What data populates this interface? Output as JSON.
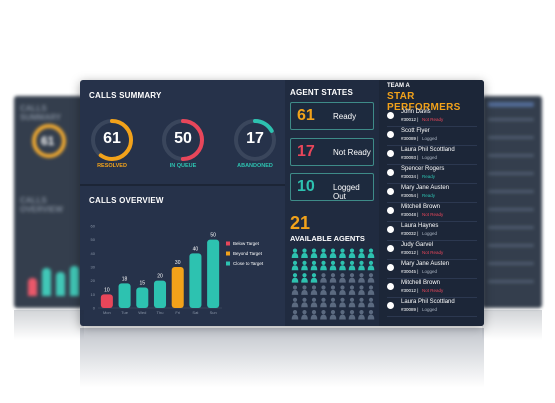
{
  "summary": {
    "title": "CALLS SUMMARY",
    "kpis": [
      {
        "value": "61",
        "label": "RESOLVED",
        "color": "#f2a21a",
        "fill": 0.6
      },
      {
        "value": "50",
        "label": "IN QUEUE",
        "color": "#e8465a",
        "fill": 0.5
      },
      {
        "value": "17",
        "label": "ABANDONED",
        "color": "#2dc2b0",
        "fill": 0.17
      }
    ]
  },
  "overview": {
    "title": "CALLS OVERVIEW"
  },
  "chart_data": {
    "type": "bar",
    "categories": [
      "Mon",
      "Tue",
      "Wed",
      "Thu",
      "Fri",
      "Sat",
      "Sun"
    ],
    "values": [
      10,
      18,
      15,
      20,
      30,
      40,
      50
    ],
    "bar_colors": [
      "#e8465a",
      "#2dc2b0",
      "#2dc2b0",
      "#2dc2b0",
      "#f2a21a",
      "#2dc2b0",
      "#2dc2b0"
    ],
    "ylim": [
      0,
      60
    ],
    "yticks": [
      "0",
      "10",
      "20",
      "30",
      "40",
      "50",
      "60"
    ],
    "legend": [
      {
        "name": "Below Target",
        "color": "#e8465a"
      },
      {
        "name": "Beyond Target",
        "color": "#f2a21a"
      },
      {
        "name": "Close to Target",
        "color": "#2dc2b0"
      }
    ],
    "legend_position": "right",
    "grid": false
  },
  "agent_states": {
    "title": "AGENT STATES",
    "states": [
      {
        "value": "61",
        "label": "Ready",
        "color": "#f2a21a"
      },
      {
        "value": "17",
        "label": "Not Ready",
        "color": "#e8465a"
      },
      {
        "value": "10",
        "label": "Logged Out",
        "color": "#2dc2b0"
      }
    ]
  },
  "available": {
    "value": "21",
    "label": "AVAILABLE AGENTS",
    "total_icons": 54,
    "available_count": 21,
    "available_color": "#2dc2b0",
    "other_color": "#5b6a80"
  },
  "team": {
    "label": "TEAM A",
    "title": "STAR PERFORMERS",
    "members": [
      {
        "name": "John Davis",
        "id": "#30012",
        "status": "Not Ready",
        "status_color": "#e8465a"
      },
      {
        "name": "Scott Flyer",
        "id": "#30089",
        "status": "Logged",
        "status_color": "#aab4c2"
      },
      {
        "name": "Laura Phil Scottland",
        "id": "#30093",
        "status": "Logged",
        "status_color": "#aab4c2"
      },
      {
        "name": "Spencer Rogers",
        "id": "#30034",
        "status": "Ready",
        "status_color": "#2dc2b0"
      },
      {
        "name": "Mary Jane Austen",
        "id": "#30054",
        "status": "Ready",
        "status_color": "#2dc2b0"
      },
      {
        "name": "Mitchell Brown",
        "id": "#30048",
        "status": "Not Ready",
        "status_color": "#e8465a"
      },
      {
        "name": "Laura Haynes",
        "id": "#30032",
        "status": "Logged",
        "status_color": "#aab4c2"
      },
      {
        "name": "Judy Garvel",
        "id": "#30012",
        "status": "Not Ready",
        "status_color": "#e8465a"
      },
      {
        "name": "Mary Jane Austen",
        "id": "#30045",
        "status": "Logged",
        "status_color": "#aab4c2"
      },
      {
        "name": "Mitchell Brown",
        "id": "#30012",
        "status": "Not Ready",
        "status_color": "#e8465a"
      },
      {
        "name": "Laura Phil Scottland",
        "id": "#30089",
        "status": "Logged",
        "status_color": "#aab4c2"
      }
    ]
  },
  "ghost_left": {
    "title": "CALLS SUMMARY",
    "value": "61",
    "title2": "CALLS OVERVIEW"
  }
}
